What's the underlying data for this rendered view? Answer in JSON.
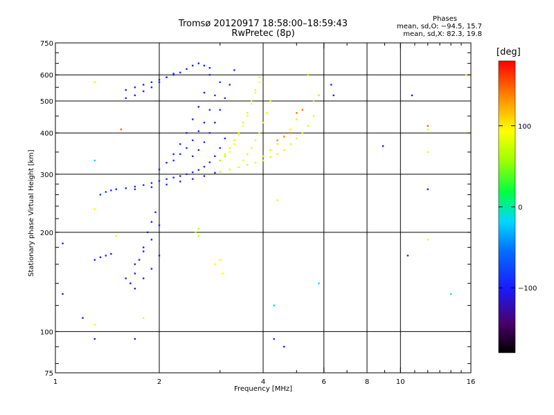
{
  "chart_data": {
    "type": "scatter",
    "title": "Tromsø 20120917 18:58:00–18:59:43",
    "subtitle": "RwPretec (8p)",
    "xlabel": "Frequency [MHz]",
    "ylabel": "Stationary phase Virtual Height [km]",
    "x_scale": "log",
    "y_scale": "log",
    "xlim": [
      1,
      16
    ],
    "ylim": [
      75,
      750
    ],
    "x_ticks": [
      1,
      2,
      4,
      6,
      8,
      10,
      16
    ],
    "x_tick_labels": [
      "1",
      "2",
      "4",
      "6",
      "8",
      "10",
      "16"
    ],
    "y_ticks": [
      75,
      100,
      200,
      300,
      400,
      500,
      600,
      750
    ],
    "y_tick_labels": [
      "75",
      "100",
      "200",
      "300",
      "400",
      "500",
      "600",
      "750"
    ],
    "grid": true,
    "legend": {
      "heading": "Phases",
      "o_label": "mean, sd,O:",
      "o_values": "−94.5, 15.7",
      "x_label": "mean, sd,X:",
      "x_values": "82.3, 19.8"
    },
    "colorbar": {
      "unit": "[deg]",
      "range": [
        -180,
        180
      ],
      "ticks": [
        100,
        0,
        -100
      ],
      "tick_labels": [
        "100",
        "0",
        "−100"
      ]
    },
    "traces": [
      {
        "name": "O-trace",
        "phase": -94.5,
        "points": [
          [
            1.5,
            270
          ],
          [
            1.6,
            272
          ],
          [
            1.7,
            275
          ],
          [
            1.8,
            278
          ],
          [
            1.9,
            282
          ],
          [
            2.0,
            286
          ],
          [
            2.1,
            290
          ],
          [
            2.2,
            293
          ],
          [
            2.3,
            296
          ],
          [
            2.4,
            300
          ],
          [
            2.5,
            304
          ],
          [
            2.6,
            309
          ],
          [
            2.7,
            316
          ],
          [
            2.8,
            326
          ],
          [
            2.9,
            340
          ],
          [
            3.0,
            360
          ],
          [
            3.1,
            385
          ]
        ]
      },
      {
        "name": "O-trace-lower",
        "phase": -96,
        "points": [
          [
            1.7,
            270
          ],
          [
            1.9,
            274
          ],
          [
            2.1,
            279
          ],
          [
            2.3,
            285
          ],
          [
            2.5,
            290
          ],
          [
            2.7,
            296
          ],
          [
            2.9,
            303
          ]
        ]
      },
      {
        "name": "O-spread-a",
        "phase": -90,
        "points": [
          [
            2.2,
            330
          ],
          [
            2.3,
            345
          ],
          [
            2.4,
            360
          ],
          [
            2.5,
            380
          ],
          [
            2.6,
            405
          ],
          [
            2.7,
            430
          ],
          [
            2.8,
            470
          ],
          [
            2.9,
            520
          ],
          [
            3.0,
            570
          ]
        ]
      },
      {
        "name": "O-spread-b",
        "phase": -92,
        "points": [
          [
            2.5,
            340
          ],
          [
            2.6,
            355
          ],
          [
            2.7,
            375
          ],
          [
            2.8,
            400
          ],
          [
            2.9,
            430
          ],
          [
            3.0,
            470
          ],
          [
            3.1,
            510
          ],
          [
            3.2,
            560
          ],
          [
            3.3,
            620
          ]
        ]
      },
      {
        "name": "O-spread-c",
        "phase": -98,
        "points": [
          [
            2.0,
            310
          ],
          [
            2.1,
            325
          ],
          [
            2.2,
            345
          ],
          [
            2.3,
            370
          ],
          [
            2.4,
            400
          ],
          [
            2.5,
            440
          ],
          [
            2.6,
            480
          ],
          [
            2.7,
            530
          ],
          [
            2.8,
            600
          ]
        ]
      },
      {
        "name": "O-upper",
        "phase": -100,
        "points": [
          [
            1.6,
            540
          ],
          [
            1.7,
            550
          ],
          [
            1.8,
            560
          ],
          [
            1.9,
            570
          ],
          [
            2.0,
            580
          ],
          [
            2.1,
            590
          ],
          [
            2.2,
            600
          ],
          [
            2.3,
            610
          ],
          [
            2.4,
            625
          ],
          [
            2.5,
            640
          ],
          [
            2.6,
            650
          ],
          [
            2.7,
            640
          ],
          [
            2.8,
            630
          ]
        ]
      },
      {
        "name": "O-upper-2",
        "phase": -95,
        "points": [
          [
            1.6,
            510
          ],
          [
            1.7,
            520
          ],
          [
            1.8,
            535
          ],
          [
            1.9,
            550
          ],
          [
            2.0,
            570
          ],
          [
            2.1,
            590
          ],
          [
            2.2,
            605
          ]
        ]
      },
      {
        "name": "O-low",
        "phase": -105,
        "points": [
          [
            1.65,
            140
          ],
          [
            1.7,
            150
          ],
          [
            1.75,
            165
          ],
          [
            1.8,
            180
          ],
          [
            1.85,
            200
          ],
          [
            1.9,
            215
          ],
          [
            1.95,
            230
          ]
        ]
      },
      {
        "name": "O-low-2",
        "phase": -100,
        "points": [
          [
            1.6,
            145
          ],
          [
            1.7,
            160
          ],
          [
            1.8,
            175
          ],
          [
            1.9,
            190
          ],
          [
            2.0,
            210
          ]
        ]
      },
      {
        "name": "O-low-3",
        "phase": -108,
        "points": [
          [
            1.7,
            135
          ],
          [
            1.8,
            145
          ],
          [
            1.9,
            155
          ],
          [
            2.0,
            170
          ]
        ]
      },
      {
        "name": "O-start",
        "phase": -90,
        "points": [
          [
            1.35,
            260
          ],
          [
            1.4,
            265
          ],
          [
            1.45,
            268
          ]
        ]
      },
      {
        "name": "O-lowfreq",
        "phase": -100,
        "points": [
          [
            1.3,
            165
          ],
          [
            1.35,
            168
          ],
          [
            1.4,
            170
          ],
          [
            1.45,
            172
          ]
        ]
      },
      {
        "name": "X-trace",
        "phase": 82.3,
        "points": [
          [
            3.0,
            305
          ],
          [
            3.2,
            310
          ],
          [
            3.4,
            315
          ],
          [
            3.6,
            320
          ],
          [
            3.8,
            325
          ],
          [
            4.0,
            330
          ],
          [
            4.2,
            338
          ],
          [
            4.4,
            345
          ],
          [
            4.6,
            355
          ],
          [
            4.8,
            370
          ],
          [
            5.0,
            385
          ],
          [
            5.2,
            400
          ],
          [
            5.4,
            420
          ],
          [
            5.6,
            450
          ]
        ]
      },
      {
        "name": "X-spread-a",
        "phase": 80,
        "points": [
          [
            3.0,
            330
          ],
          [
            3.1,
            345
          ],
          [
            3.2,
            360
          ],
          [
            3.3,
            380
          ],
          [
            3.4,
            400
          ],
          [
            3.5,
            430
          ],
          [
            3.6,
            460
          ],
          [
            3.7,
            500
          ],
          [
            3.8,
            540
          ],
          [
            3.9,
            590
          ]
        ]
      },
      {
        "name": "X-spread-b",
        "phase": 85,
        "points": [
          [
            3.5,
            330
          ],
          [
            3.6,
            345
          ],
          [
            3.7,
            360
          ],
          [
            3.8,
            380
          ],
          [
            3.9,
            400
          ],
          [
            4.0,
            430
          ],
          [
            4.1,
            460
          ],
          [
            4.2,
            500
          ]
        ]
      },
      {
        "name": "X-spread-c",
        "phase": 78,
        "points": [
          [
            4.0,
            340
          ],
          [
            4.2,
            355
          ],
          [
            4.4,
            370
          ],
          [
            4.6,
            390
          ],
          [
            4.8,
            410
          ],
          [
            5.0,
            440
          ],
          [
            5.2,
            470
          ]
        ]
      },
      {
        "name": "X-spread-d",
        "phase": 90,
        "points": [
          [
            3.2,
            350
          ],
          [
            3.3,
            370
          ],
          [
            3.4,
            395
          ],
          [
            3.5,
            420
          ],
          [
            3.6,
            450
          ],
          [
            3.7,
            490
          ],
          [
            3.8,
            530
          ],
          [
            3.9,
            570
          ]
        ]
      },
      {
        "name": "X-red",
        "phase": 140,
        "points": [
          [
            4.4,
            380
          ],
          [
            4.6,
            390
          ],
          [
            4.8,
            400
          ],
          [
            5.0,
            460
          ],
          [
            5.2,
            470
          ]
        ]
      },
      {
        "name": "X-green",
        "phase": 60,
        "points": [
          [
            3.0,
            330
          ],
          [
            3.1,
            340
          ],
          [
            5.4,
            600
          ],
          [
            5.6,
            500
          ],
          [
            5.8,
            520
          ]
        ]
      },
      {
        "name": "X-yellow-low",
        "phase": 95,
        "points": [
          [
            2.9,
            160
          ],
          [
            3.0,
            165
          ],
          [
            3.05,
            150
          ]
        ]
      },
      {
        "name": "green-low",
        "phase": 70,
        "points": [
          [
            2.55,
            200
          ],
          [
            2.6,
            195
          ],
          [
            2.6,
            205
          ]
        ]
      },
      {
        "name": "isolated",
        "phase": -110,
        "points": [
          [
            1.05,
            185
          ],
          [
            1.05,
            130
          ],
          [
            1.2,
            110
          ],
          [
            1.3,
            95
          ],
          [
            1.7,
            95
          ],
          [
            4.3,
            95
          ],
          [
            4.6,
            90
          ],
          [
            6.3,
            560
          ],
          [
            6.4,
            520
          ],
          [
            8.9,
            365
          ],
          [
            10.5,
            170
          ],
          [
            10.8,
            520
          ],
          [
            12.0,
            270
          ]
        ]
      },
      {
        "name": "isolated-cyan",
        "phase": -20,
        "points": [
          [
            1.3,
            330
          ],
          [
            4.3,
            120
          ],
          [
            5.8,
            140
          ],
          [
            14.0,
            130
          ]
        ]
      },
      {
        "name": "isolated-yellow",
        "phase": 100,
        "points": [
          [
            1.3,
            570
          ],
          [
            1.3,
            235
          ],
          [
            1.3,
            105
          ],
          [
            1.5,
            195
          ],
          [
            1.8,
            110
          ],
          [
            4.4,
            250
          ],
          [
            12.0,
            410
          ],
          [
            12.0,
            350
          ],
          [
            12.0,
            190
          ],
          [
            15.5,
            600
          ],
          [
            15.8,
            400
          ]
        ]
      },
      {
        "name": "isolated-red",
        "phase": 150,
        "points": [
          [
            1.55,
            410
          ],
          [
            12.0,
            420
          ]
        ]
      }
    ]
  }
}
